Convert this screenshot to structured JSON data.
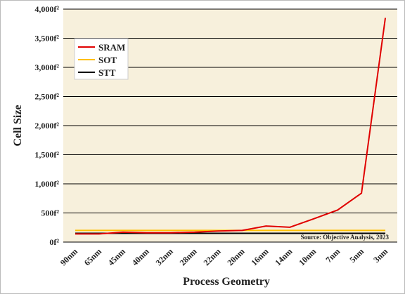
{
  "chart_data": {
    "type": "line",
    "y_label": "Cell Size",
    "x_label": "Process Geometry",
    "annotation": "Source: Objective Analysis, 2023",
    "categories": [
      "90nm",
      "65nm",
      "45nm",
      "40nm",
      "32nm",
      "28nm",
      "22nm",
      "20nm",
      "16nm",
      "14nm",
      "10nm",
      "7nm",
      "5nm",
      "3nm"
    ],
    "series": [
      {
        "name": "SRAM",
        "color": "#e00000",
        "values": [
          140,
          140,
          170,
          160,
          160,
          170,
          190,
          200,
          275,
          255,
          400,
          550,
          840,
          3850
        ]
      },
      {
        "name": "SOT",
        "color": "#ffc000",
        "values": [
          200,
          200,
          200,
          200,
          200,
          200,
          200,
          200,
          200,
          200,
          200,
          200,
          200,
          200
        ]
      },
      {
        "name": "STT",
        "color": "#000000",
        "values": [
          150,
          150,
          150,
          150,
          150,
          150,
          150,
          150,
          150,
          150,
          150,
          150,
          150,
          150
        ]
      }
    ],
    "ylim": [
      0,
      4000
    ],
    "yticks": [
      {
        "value": 0,
        "label": "0f²"
      },
      {
        "value": 500,
        "label": "500f²"
      },
      {
        "value": 1000,
        "label": "1,000f²"
      },
      {
        "value": 1500,
        "label": "1,500f²"
      },
      {
        "value": 2000,
        "label": "2,000f²"
      },
      {
        "value": 2500,
        "label": "2,500f²"
      },
      {
        "value": 3000,
        "label": "3,000f²"
      },
      {
        "value": 3500,
        "label": "3,500f²"
      },
      {
        "value": 4000,
        "label": "4,000f²"
      }
    ],
    "grid": true
  }
}
